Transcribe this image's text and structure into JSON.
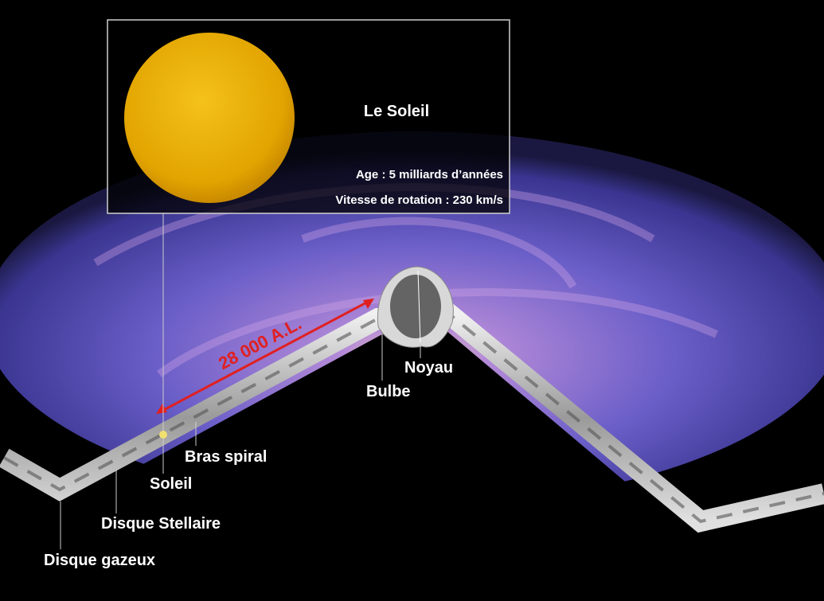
{
  "inset": {
    "title": "Le Soleil",
    "age": "Age : 5 milliards d’années",
    "speed": "Vitesse de rotation : 230 km/s"
  },
  "distance": "28 000 A.L.",
  "labels": {
    "core": "Noyau",
    "bulge": "Bulbe",
    "arm": "Bras spiral",
    "sun": "Soleil",
    "stellar_disk": "Disque Stellaire",
    "gas_disk": "Disque gazeux"
  }
}
